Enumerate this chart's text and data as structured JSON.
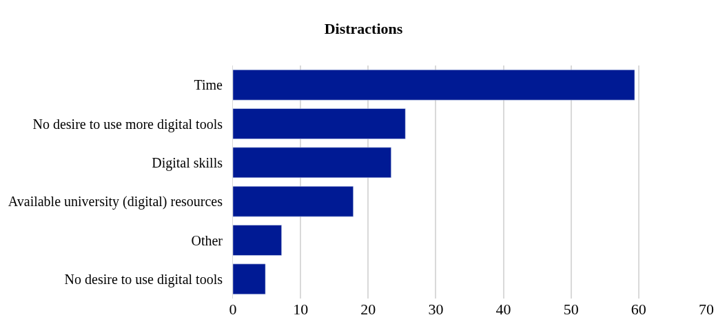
{
  "chart_data": {
    "type": "bar",
    "orientation": "horizontal",
    "title": "Distractions",
    "categories": [
      "Time",
      "No desire to use more digital tools",
      "Digital skills",
      "Available university (digital) resources",
      "Other",
      "No desire to use digital tools"
    ],
    "values": [
      59.4,
      25.5,
      23.4,
      17.8,
      7.2,
      4.8
    ],
    "color": "#001a94",
    "xlim": [
      0,
      70
    ],
    "xticks": [
      0,
      10,
      20,
      30,
      40,
      50,
      60,
      70
    ],
    "grid": "x",
    "legend": false
  }
}
